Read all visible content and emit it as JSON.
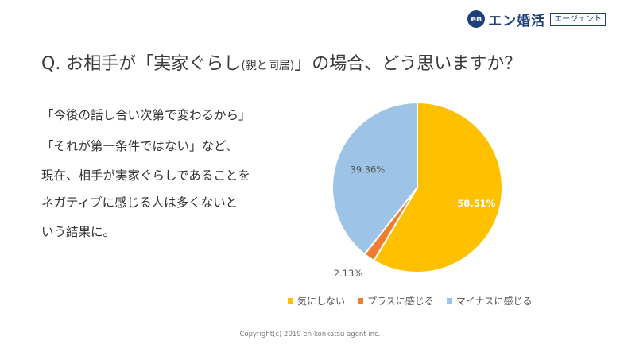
{
  "brand": {
    "mark": "en",
    "name": "エン婚活",
    "sub": "エージェント",
    "color": "#1f3f7a"
  },
  "question": {
    "main": "Q. お相手が「実家ぐらし",
    "paren": "(親と同居)",
    "rest": "」の場合、どう思いますか？"
  },
  "body_lines": [
    "「今後の話し合い次第で変わるから」",
    "「それが第一条件ではない」など、",
    "現在、相手が実家ぐらしであることを",
    "ネガティブに感じる人は多くないと",
    "いう結果に。"
  ],
  "chart_data": {
    "type": "pie",
    "title": "",
    "categories": [
      "気にしない",
      "プラスに感じる",
      "マイナスに感じる"
    ],
    "values": [
      58.51,
      2.13,
      39.36
    ],
    "labels": [
      "58.51%",
      "2.13%",
      "39.36%"
    ],
    "colors": [
      "#FFC000",
      "#ED7D31",
      "#9DC3E6"
    ],
    "legend_position": "bottom"
  },
  "copyright": "Copyright(c) 2019 en-konkatsu agent inc."
}
